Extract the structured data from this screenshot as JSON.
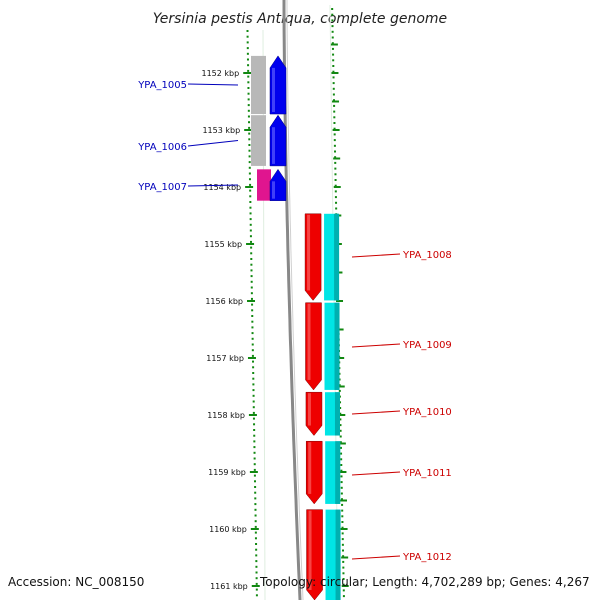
{
  "title": "Yersinia pestis Antiqua, complete genome",
  "footer": {
    "accession": "Accession: NC_008150",
    "topology": "Topology: circular; Length: 4,702,289 bp; Genes: 4,267"
  },
  "colors": {
    "forward_gene": "#0000ee",
    "reverse_gene": "#ee0000",
    "ncrna_gene": "#e0158f",
    "forward_cds_shade": "#b8b8b8",
    "reverse_cds_shade": "#00e5e5",
    "reverse_cds_shade_dark": "#00b0b0",
    "tick": "#118811",
    "backbone": "#888888",
    "forward_label": "#0000bb",
    "reverse_label": "#cc0000"
  },
  "ticks": [
    {
      "label": "1152 kbp",
      "kbp": 1152
    },
    {
      "label": "1153 kbp",
      "kbp": 1153
    },
    {
      "label": "1154 kbp",
      "kbp": 1154
    },
    {
      "label": "1155 kbp",
      "kbp": 1155
    },
    {
      "label": "1156 kbp",
      "kbp": 1156
    },
    {
      "label": "1157 kbp",
      "kbp": 1157
    },
    {
      "label": "1158 kbp",
      "kbp": 1158
    },
    {
      "label": "1159 kbp",
      "kbp": 1159
    },
    {
      "label": "1160 kbp",
      "kbp": 1160
    },
    {
      "label": "1161 kbp",
      "kbp": 1161
    }
  ],
  "genes": [
    {
      "name": "YPA_1005",
      "strand": "forward",
      "start_kbp": 1151.7,
      "end_kbp": 1152.72
    },
    {
      "name": "YPA_1006",
      "strand": "forward",
      "start_kbp": 1152.74,
      "end_kbp": 1153.63
    },
    {
      "name": "YPA_1007",
      "strand": "forward",
      "start_kbp": 1153.69,
      "end_kbp": 1154.24
    },
    {
      "name": "YPA_1008",
      "strand": "reverse",
      "start_kbp": 1154.47,
      "end_kbp": 1155.99
    },
    {
      "name": "YPA_1009",
      "strand": "reverse",
      "start_kbp": 1156.03,
      "end_kbp": 1157.56
    },
    {
      "name": "YPA_1010",
      "strand": "reverse",
      "start_kbp": 1157.6,
      "end_kbp": 1158.36
    },
    {
      "name": "YPA_1011",
      "strand": "reverse",
      "start_kbp": 1158.46,
      "end_kbp": 1159.56
    },
    {
      "name": "YPA_1012",
      "strand": "reverse",
      "start_kbp": 1159.66,
      "end_kbp": 1161.3
    }
  ]
}
